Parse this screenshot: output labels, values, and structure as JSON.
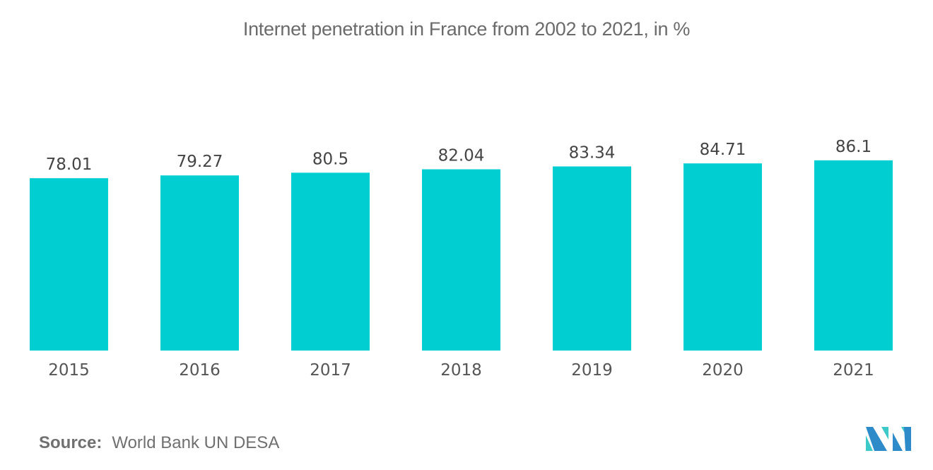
{
  "chart_data": {
    "type": "bar",
    "title": "Internet penetration in France from 2002 to 2021, in %",
    "categories": [
      "2015",
      "2016",
      "2017",
      "2018",
      "2019",
      "2020",
      "2021"
    ],
    "values": [
      78.01,
      79.27,
      80.5,
      82.04,
      83.34,
      84.71,
      86.1
    ],
    "data_labels": [
      "78.01",
      "79.27",
      "80.5",
      "82.04",
      "83.34",
      "84.71",
      "86.1"
    ],
    "xlabel": "",
    "ylabel": "",
    "ylim": [
      0,
      100
    ],
    "grid": false,
    "legend": "none",
    "bar_color": "#00ced1"
  },
  "footer": {
    "source_label": "Source:",
    "source_text": "World Bank UN DESA"
  },
  "logo": {
    "icon": "mordor-intelligence-logo-icon",
    "colors": [
      "#2e8bc9",
      "#3ec9c9"
    ]
  }
}
